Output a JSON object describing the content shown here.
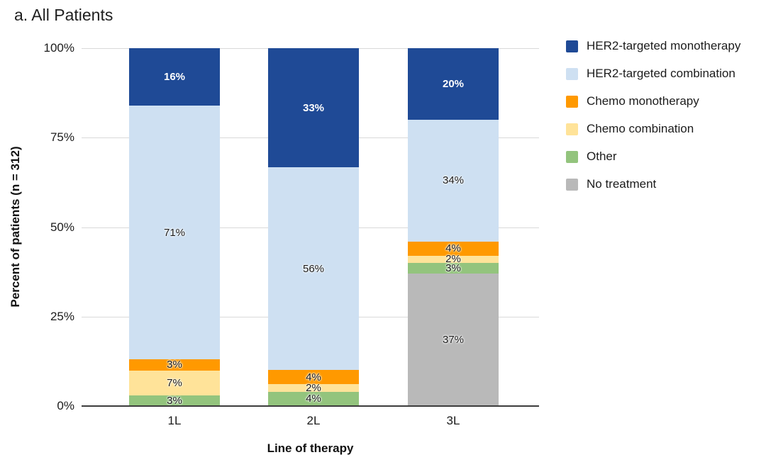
{
  "title": "a. All Patients",
  "chart_data": {
    "type": "bar",
    "stacked": true,
    "title": "a. All Patients",
    "xlabel": "Line of therapy",
    "ylabel": "Percent of patients (n = 312)",
    "categories": [
      "1L",
      "2L",
      "3L"
    ],
    "series": [
      {
        "name": "HER2-targeted monotherapy",
        "color": "#1f4a96",
        "label_style": "light",
        "values": [
          16,
          33,
          20
        ]
      },
      {
        "name": "HER2-targeted combination",
        "color": "#cee0f2",
        "label_style": "dark",
        "values": [
          71,
          56,
          34
        ]
      },
      {
        "name": "Chemo monotherapy",
        "color": "#ff9900",
        "label_style": "dark",
        "values": [
          3,
          4,
          4
        ]
      },
      {
        "name": "Chemo combination",
        "color": "#ffe399",
        "label_style": "dark",
        "values": [
          7,
          2,
          2
        ]
      },
      {
        "name": "Other",
        "color": "#93c47d",
        "label_style": "dark",
        "values": [
          3,
          4,
          3
        ]
      },
      {
        "name": "No treatment",
        "color": "#b9b9b9",
        "label_style": "dark",
        "values": [
          0,
          0,
          37
        ]
      }
    ],
    "value_suffix": "%",
    "y_ticks": [
      "100%",
      "75%",
      "50%",
      "25%",
      "0%"
    ],
    "ylim": [
      0,
      100
    ],
    "grid": true,
    "legend_position": "right",
    "colors": {
      "gridline": "#d9d9d9",
      "axis_line": "#3c3c3c",
      "text": "#1c1c1c"
    }
  }
}
